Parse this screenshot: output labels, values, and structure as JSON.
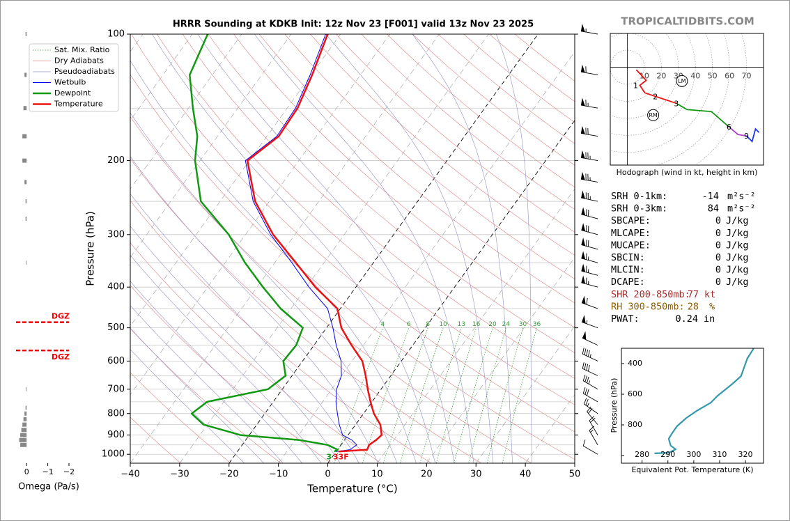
{
  "site": "TROPICALTIDBITS.COM",
  "indices": [
    {
      "label": "SRH 0-1km:",
      "value": -14,
      "unit": "m²s⁻²"
    },
    {
      "label": "SRH 0-3km:",
      "value": 84,
      "unit": "m²s⁻²"
    },
    {
      "label": "SBCAPE:",
      "value": 0,
      "unit": "J/kg"
    },
    {
      "label": "MLCAPE:",
      "value": 0,
      "unit": "J/kg"
    },
    {
      "label": "MUCAPE:",
      "value": 0,
      "unit": "J/kg"
    },
    {
      "label": "SBCIN:",
      "value": 0,
      "unit": "J/kg"
    },
    {
      "label": "MLCIN:",
      "value": 0,
      "unit": "J/kg"
    },
    {
      "label": "DCAPE:",
      "value": 0,
      "unit": "J/kg"
    },
    {
      "label": "SHR 200-850mb:",
      "value": 77,
      "unit": "kt",
      "color": "#a52a2a"
    },
    {
      "label": "RH 300-850mb:",
      "value": 28,
      "unit": "%",
      "color": "#8b5a00"
    },
    {
      "label": "PWAT:",
      "value": 0.24,
      "unit": "in"
    }
  ],
  "chart_data": [
    {
      "type": "skewt",
      "title": "HRRR Sounding at KDKB Init: 12z Nov 23 [F001] valid 13z Nov 23 2025",
      "xlabel": "Temperature (°C)",
      "ylabel": "Pressure (hPa)",
      "xlim": [
        -40,
        50
      ],
      "ylim": [
        1050,
        100
      ],
      "log_y": true,
      "xticks": [
        {
          "value": -40,
          "label": "−40"
        },
        {
          "value": -30,
          "label": "−30"
        },
        {
          "value": -20,
          "label": "−20"
        },
        {
          "value": -10,
          "label": "−10"
        },
        0,
        10,
        20,
        30,
        40,
        50
      ],
      "yticks": [
        100,
        200,
        300,
        400,
        500,
        600,
        700,
        800,
        900,
        1000
      ],
      "ygrid": [
        100,
        150,
        200,
        250,
        300,
        350,
        400,
        450,
        500,
        550,
        600,
        650,
        700,
        750,
        800,
        850,
        900,
        950,
        1000
      ],
      "background_lines": [
        {
          "name": "Sat. Mix. Ratio",
          "color": "#339933"
        },
        {
          "name": "Dry Adiabats",
          "color": "#e08080"
        },
        {
          "name": "Pseudoadiabats",
          "color": "#9090c8"
        }
      ],
      "mixing_ratio_labels": [
        4,
        6,
        8,
        10,
        13,
        16,
        20,
        24,
        30,
        36
      ],
      "pressure": [
        100,
        125,
        150,
        175,
        200,
        250,
        300,
        350,
        400,
        450,
        500,
        550,
        600,
        650,
        700,
        750,
        800,
        850,
        900,
        925,
        950,
        975,
        985
      ],
      "series": [
        {
          "name": "Wetbulb",
          "color": "#0000ee",
          "values": [
            -63,
            -60.2,
            -58.3,
            -58,
            -60.8,
            -53.3,
            -44.9,
            -36.5,
            -29.5,
            -22.6,
            -18.7,
            -15.5,
            -12.2,
            -10,
            -9,
            -7.3,
            -5.3,
            -3.3,
            -1.1,
            1.5,
            3.2,
            2.5,
            0
          ]
        },
        {
          "name": "Dewpoint",
          "color": "#119911",
          "values": [
            -86.9,
            -84.6,
            -79.1,
            -74.1,
            -71,
            -63.9,
            -53.4,
            -46,
            -38.8,
            -32.1,
            -24.8,
            -23.6,
            -23.9,
            -21.3,
            -22.9,
            -33.4,
            -34.8,
            -30.8,
            -21.8,
            -9.1,
            -2.7,
            0,
            -0.4
          ]
        },
        {
          "name": "Temperature",
          "color": "#ee1111",
          "values": [
            -62.6,
            -59.8,
            -57.9,
            -57.6,
            -60.4,
            -52.9,
            -44.4,
            -35.7,
            -28.2,
            -20.6,
            -17,
            -12.4,
            -7.9,
            -5.1,
            -2.7,
            -0.3,
            2.1,
            5,
            6.8,
            6.4,
            5.7,
            6,
            0.5
          ]
        }
      ],
      "surface_labels": [
        {
          "text": "3",
          "color": "#119911"
        },
        {
          "text": "33F",
          "color": "#ee1111"
        }
      ],
      "wind": {
        "pressure": [
          100,
          125,
          150,
          175,
          200,
          225,
          250,
          275,
          300,
          325,
          350,
          375,
          400,
          450,
          500,
          550,
          600,
          650,
          700,
          750,
          800,
          850,
          900,
          950,
          1000
        ],
        "speed": [
          55,
          60,
          65,
          70,
          75,
          75,
          75,
          70,
          70,
          70,
          65,
          65,
          65,
          60,
          55,
          50,
          45,
          40,
          35,
          30,
          25,
          20,
          20,
          15,
          10
        ],
        "direction": [
          280,
          280,
          280,
          280,
          280,
          280,
          282,
          285,
          285,
          285,
          285,
          285,
          285,
          290,
          290,
          295,
          295,
          295,
          300,
          300,
          305,
          320,
          330,
          330,
          300
        ]
      }
    },
    {
      "type": "bar",
      "xlabel": "Omega (Pa/s)",
      "xlim": [
        0.5,
        -2
      ],
      "xticks": [
        0,
        {
          "value": -1,
          "label": "−1"
        },
        {
          "value": -2,
          "label": "−2"
        }
      ],
      "color": "#888888",
      "pressure": [
        100,
        125,
        150,
        175,
        200,
        225,
        250,
        275,
        350,
        700,
        775,
        800,
        825,
        850,
        875,
        900,
        925,
        950
      ],
      "values": [
        0.05,
        0.1,
        0.15,
        0.2,
        0.2,
        0.1,
        0.05,
        0.05,
        0.03,
        0.03,
        0.05,
        0.1,
        0.15,
        0.2,
        0.25,
        0.3,
        0.35,
        0.3
      ],
      "dgz": {
        "label": "DGZ",
        "pressures": [
          485,
          566
        ],
        "color": "#ee0000"
      }
    },
    {
      "type": "hodograph",
      "caption": "Hodograph (wind in kt, height in km)",
      "xlim": [
        -10,
        80
      ],
      "ylim": [
        -58,
        20
      ],
      "rings": [
        10,
        20,
        30,
        40,
        50,
        60,
        70
      ],
      "series": [
        {
          "color": "#ee1111",
          "u": [
            5.3,
            11.1,
            7.4,
            10.3,
            16.5,
            28.8
          ],
          "v": [
            -1.6,
            -7.8,
            -10.7,
            -15.2,
            -17.3,
            -21.4
          ]
        },
        {
          "color": "#119911",
          "u": [
            28.8,
            35,
            49.4,
            59.7
          ],
          "v": [
            -21.4,
            -25.1,
            -26.3,
            -35.4
          ]
        },
        {
          "color": "#aa44cc",
          "u": [
            59.7,
            65,
            70
          ],
          "v": [
            -35.4,
            -39.9,
            -40.7
          ]
        },
        {
          "color": "#2233ee",
          "u": [
            70,
            73.3,
            75.3,
            77.4
          ],
          "v": [
            -40.7,
            -44,
            -36.6,
            -38.7
          ]
        }
      ],
      "height_labels": [
        {
          "text": "1",
          "u": 7.4,
          "v": -10.7
        },
        {
          "text": "2",
          "u": 16.5,
          "v": -17.3
        },
        {
          "text": "3",
          "u": 28.8,
          "v": -21.4
        },
        {
          "text": "6",
          "u": 59.7,
          "v": -35.4
        },
        {
          "text": "9",
          "u": 70,
          "v": -40.7
        }
      ],
      "storm_motion": [
        {
          "text": "LM",
          "u": 32.1,
          "v": -8.2
        },
        {
          "text": "RM",
          "u": 15.2,
          "v": -28.4
        }
      ]
    },
    {
      "type": "line",
      "xlabel": "Equivalent Pot. Temperature (K)",
      "ylabel": "Pressure (hPa)",
      "xlim": [
        272,
        327
      ],
      "ylim": [
        1050,
        300
      ],
      "xticks": [
        280,
        290,
        300,
        310,
        320
      ],
      "yticks": [
        400,
        600,
        800
      ],
      "y_unlabeled_ticks": [
        1000
      ],
      "color": "#3399aa",
      "values": [
        323.2,
        320.7,
        318.3,
        314.7,
        309.3,
        306.6,
        301.1,
        297.1,
        293.5,
        291.6,
        290.3,
        291.1,
        293,
        290.3,
        284.8
      ],
      "pressure": [
        300,
        368,
        482,
        536,
        609,
        655,
        709,
        755,
        809,
        855,
        891,
        936,
        959,
        982,
        986
      ]
    }
  ]
}
